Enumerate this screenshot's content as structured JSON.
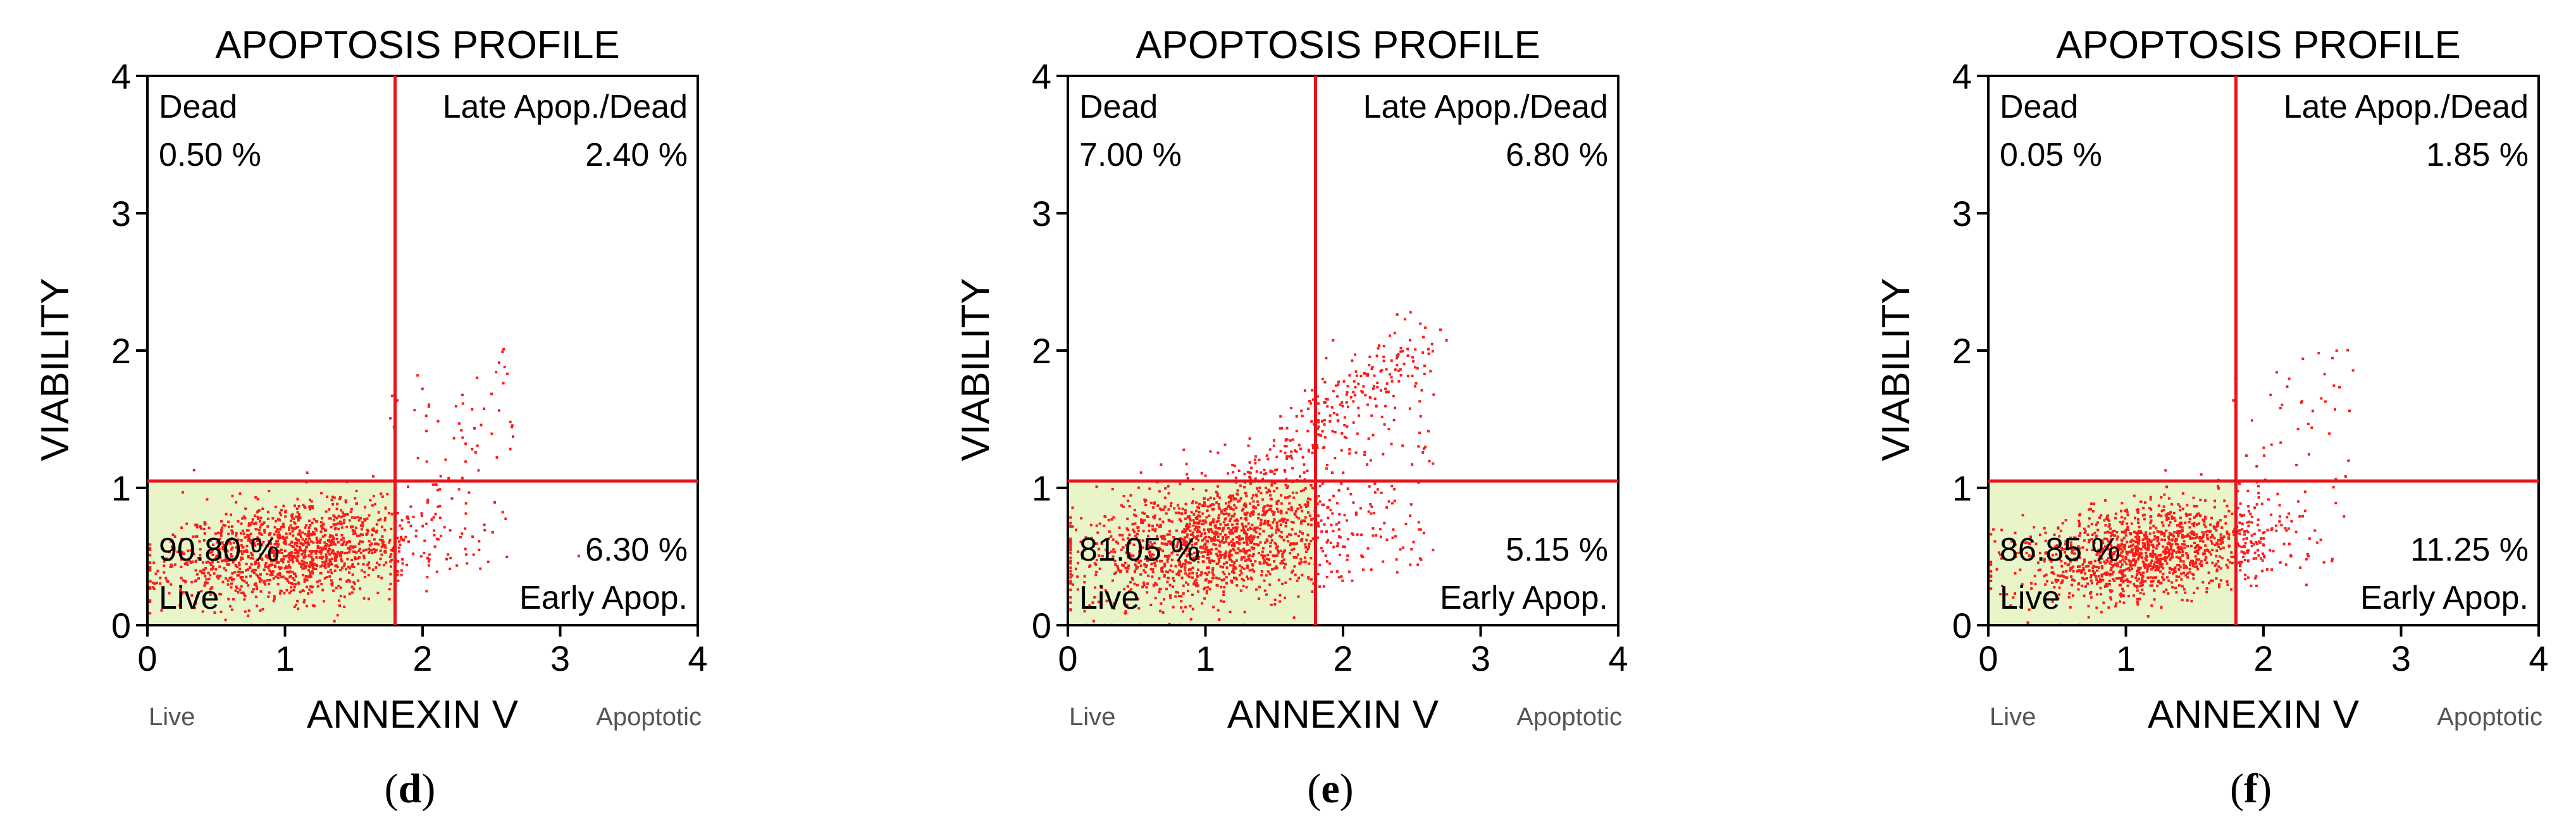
{
  "figure": {
    "panels": [
      {
        "caption_letter": "d",
        "quadrants": {
          "dead": "0.50 %",
          "late": "2.40 %",
          "live": "90.80 %",
          "early": "6.30 %"
        },
        "cluster": {
          "cx": 1.05,
          "cy": 0.55,
          "sx": 0.45,
          "sy": 0.18,
          "n": 1300,
          "scatter": 90,
          "tail": 0,
          "seed": 11
        }
      },
      {
        "caption_letter": "e",
        "quadrants": {
          "dead": "7.00 %",
          "late": "6.80 %",
          "live": "81.05 %",
          "early": "5.15 %"
        },
        "cluster": {
          "cx": 1.05,
          "cy": 0.6,
          "sx": 0.5,
          "sy": 0.22,
          "n": 1400,
          "scatter": 110,
          "tail": 260,
          "seed": 23
        }
      },
      {
        "caption_letter": "f",
        "quadrants": {
          "dead": "0.05 %",
          "late": "1.85 %",
          "live": "86.85 %",
          "early": "11.25 %"
        },
        "cluster": {
          "cx": 1.15,
          "cy": 0.55,
          "sx": 0.45,
          "sy": 0.17,
          "n": 1300,
          "scatter": 70,
          "tail": 0,
          "seed": 37
        }
      }
    ]
  },
  "chart_data": [
    {
      "type": "scatter",
      "title": "APOPTOSIS PROFILE",
      "xlabel": "ANNEXIN V",
      "ylabel": "VIABILITY",
      "x_axis_notes": [
        "Live",
        "Apoptotic"
      ],
      "xlim": [
        0,
        4
      ],
      "ylim": [
        0,
        4
      ],
      "xticks": [
        "0",
        "1",
        "2",
        "3",
        "4"
      ],
      "yticks": [
        "0",
        "1",
        "2",
        "3",
        "4"
      ],
      "quadrant_gates": {
        "x": 1.8,
        "y": 1.05
      },
      "quadrants": [
        {
          "name": "Dead",
          "value": 0.5,
          "label": "0.50 %"
        },
        {
          "name": "Late Apop./Dead",
          "value": 2.4,
          "label": "2.40 %"
        },
        {
          "name": "Live",
          "value": 90.8,
          "label": "90.80 %"
        },
        {
          "name": "Early Apop.",
          "value": 6.3,
          "label": "6.30 %"
        }
      ]
    },
    {
      "type": "scatter",
      "title": "APOPTOSIS PROFILE",
      "xlabel": "ANNEXIN V",
      "ylabel": "VIABILITY",
      "x_axis_notes": [
        "Live",
        "Apoptotic"
      ],
      "xlim": [
        0,
        4
      ],
      "ylim": [
        0,
        4
      ],
      "xticks": [
        "0",
        "1",
        "2",
        "3",
        "4"
      ],
      "yticks": [
        "0",
        "1",
        "2",
        "3",
        "4"
      ],
      "quadrant_gates": {
        "x": 1.8,
        "y": 1.05
      },
      "quadrants": [
        {
          "name": "Dead",
          "value": 7.0,
          "label": "7.00 %"
        },
        {
          "name": "Late Apop./Dead",
          "value": 6.8,
          "label": "6.80 %"
        },
        {
          "name": "Live",
          "value": 81.05,
          "label": "81.05 %"
        },
        {
          "name": "Early Apop.",
          "value": 5.15,
          "label": "5.15 %"
        }
      ]
    },
    {
      "type": "scatter",
      "title": "APOPTOSIS PROFILE",
      "xlabel": "ANNEXIN V",
      "ylabel": "VIABILITY",
      "x_axis_notes": [
        "Live",
        "Apoptotic"
      ],
      "xlim": [
        0,
        4
      ],
      "ylim": [
        0,
        4
      ],
      "xticks": [
        "0",
        "1",
        "2",
        "3",
        "4"
      ],
      "yticks": [
        "0",
        "1",
        "2",
        "3",
        "4"
      ],
      "quadrant_gates": {
        "x": 1.8,
        "y": 1.05
      },
      "quadrants": [
        {
          "name": "Dead",
          "value": 0.05,
          "label": "0.05 %"
        },
        {
          "name": "Late Apop./Dead",
          "value": 1.85,
          "label": "1.85 %"
        },
        {
          "name": "Live",
          "value": 86.85,
          "label": "86.85 %"
        },
        {
          "name": "Early Apop.",
          "value": 11.25,
          "label": "11.25 %"
        }
      ]
    }
  ],
  "labels": {
    "dead": "Dead",
    "late": "Late Apop./Dead",
    "live": "Live",
    "early": "Early Apop.",
    "open_paren": "(",
    "close_paren": ")"
  },
  "colors": {
    "gate": "#e8141c",
    "dots": "#ff1a1a",
    "live_fill": "#e9f5c8",
    "axis": "#000000"
  }
}
